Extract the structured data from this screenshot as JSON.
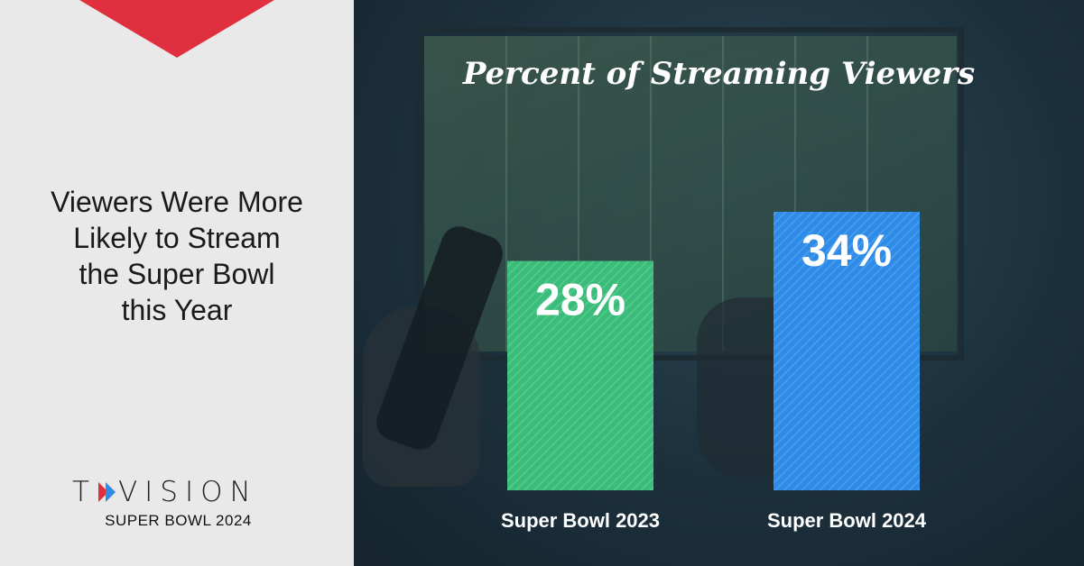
{
  "headline": {
    "lines": [
      "Viewers Were More",
      "Likely to Stream",
      "the Super Bowl",
      "this Year"
    ]
  },
  "brand": {
    "part1": "T",
    "part2": "VISION",
    "subtitle": "SUPER BOWL 2024",
    "chevron_colors": [
      "#e0303f",
      "#2f8be6"
    ]
  },
  "colors": {
    "accent_red": "#e0303f",
    "bar_2023": "#3dbb7b",
    "bar_2024": "#2f8be6"
  },
  "chart_data": {
    "type": "bar",
    "title": "Percent of Streaming Viewers",
    "categories": [
      "Super Bowl 2023",
      "Super Bowl 2024"
    ],
    "values": [
      28,
      34
    ],
    "data_labels": [
      "28%",
      "34%"
    ],
    "ylim": [
      0,
      40
    ],
    "grid": false,
    "legend": "none"
  }
}
